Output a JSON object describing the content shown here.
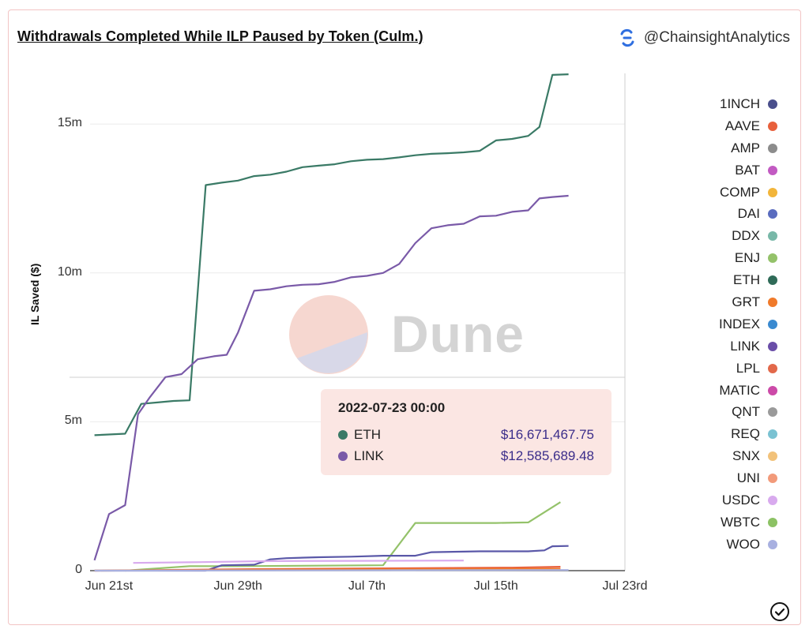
{
  "title": "Withdrawals Completed While ILP Paused by Token (Culm.)",
  "handle": "@ChainsightAnalytics",
  "watermark": "Dune",
  "tooltip": {
    "date": "2022-07-23 00:00",
    "rows": [
      {
        "name": "ETH",
        "value": "$16,671,467.75",
        "color": "#3a7a66"
      },
      {
        "name": "LINK",
        "value": "$12,585,689.48",
        "color": "#7a5aa8"
      }
    ]
  },
  "legend": [
    {
      "name": "1INCH",
      "color": "#4a4f8c"
    },
    {
      "name": "AAVE",
      "color": "#e8603c"
    },
    {
      "name": "AMP",
      "color": "#8c8c8c"
    },
    {
      "name": "BAT",
      "color": "#c25ac2"
    },
    {
      "name": "COMP",
      "color": "#f2b53a"
    },
    {
      "name": "DAI",
      "color": "#5a6cbf"
    },
    {
      "name": "DDX",
      "color": "#78b8a8"
    },
    {
      "name": "ENJ",
      "color": "#94c26a"
    },
    {
      "name": "ETH",
      "color": "#2f6b58"
    },
    {
      "name": "GRT",
      "color": "#f07a2a"
    },
    {
      "name": "INDEX",
      "color": "#3a8ad0"
    },
    {
      "name": "LINK",
      "color": "#6a4ea8"
    },
    {
      "name": "LPL",
      "color": "#e2684a"
    },
    {
      "name": "MATIC",
      "color": "#cc4aa8"
    },
    {
      "name": "QNT",
      "color": "#9a9a9a"
    },
    {
      "name": "REQ",
      "color": "#7ac2d2"
    },
    {
      "name": "SNX",
      "color": "#f2c27a"
    },
    {
      "name": "UNI",
      "color": "#f29a7a"
    },
    {
      "name": "USDC",
      "color": "#d8aaee"
    },
    {
      "name": "WBTC",
      "color": "#8cc264"
    },
    {
      "name": "WOO",
      "color": "#a8b0e0"
    }
  ],
  "chart_data": {
    "type": "line",
    "ylabel": "IL Saved ($)",
    "ylim": [
      0,
      16700000
    ],
    "y_ticks": [
      {
        "value": 0,
        "label": "0"
      },
      {
        "value": 5000000,
        "label": "5m"
      },
      {
        "value": 10000000,
        "label": "10m"
      },
      {
        "value": 15000000,
        "label": "15m"
      }
    ],
    "x_ticks": [
      "Jun 21st",
      "Jun 29th",
      "Jul 7th",
      "Jul 15th",
      "Jul 23rd"
    ],
    "x_range_days": [
      0,
      32
    ],
    "hover_day": 30.2,
    "series": [
      {
        "name": "ETH",
        "color": "#3a7a66",
        "points": [
          [
            -0.9,
            4550000.0
          ],
          [
            1,
            4600000.0
          ],
          [
            2,
            5600000.0
          ],
          [
            3,
            5650000.0
          ],
          [
            4,
            5700000.0
          ],
          [
            5,
            5720000.0
          ],
          [
            6,
            12950000.0
          ],
          [
            7,
            13030000.0
          ],
          [
            8,
            13100000.0
          ],
          [
            9,
            13250000.0
          ],
          [
            10,
            13300000.0
          ],
          [
            11,
            13400000.0
          ],
          [
            12,
            13550000.0
          ],
          [
            13,
            13600000.0
          ],
          [
            14,
            13650000.0
          ],
          [
            15,
            13750000.0
          ],
          [
            16,
            13800000.0
          ],
          [
            17,
            13820000.0
          ],
          [
            18,
            13880000.0
          ],
          [
            19,
            13950000.0
          ],
          [
            20,
            14000000.0
          ],
          [
            21,
            14020000.0
          ],
          [
            22,
            14050000.0
          ],
          [
            23,
            14100000.0
          ],
          [
            24,
            14450000.0
          ],
          [
            25,
            14500000.0
          ],
          [
            26,
            14600000.0
          ],
          [
            26.7,
            14900000.0
          ],
          [
            27.5,
            16650000.0
          ],
          [
            28.5,
            16670000.0
          ]
        ]
      },
      {
        "name": "LINK",
        "color": "#7a5aa8",
        "points": [
          [
            -0.9,
            350000.0
          ],
          [
            0,
            1900000.0
          ],
          [
            1,
            2200000.0
          ],
          [
            1.8,
            5250000.0
          ],
          [
            2.5,
            5800000.0
          ],
          [
            3.5,
            6500000.0
          ],
          [
            4.5,
            6600000.0
          ],
          [
            5.5,
            7100000.0
          ],
          [
            6.5,
            7200000.0
          ],
          [
            7.3,
            7250000.0
          ],
          [
            8,
            8000000.0
          ],
          [
            9,
            9400000.0
          ],
          [
            10,
            9450000.0
          ],
          [
            11,
            9550000.0
          ],
          [
            12,
            9600000.0
          ],
          [
            13,
            9620000.0
          ],
          [
            14,
            9700000.0
          ],
          [
            15,
            9850000.0
          ],
          [
            16,
            9900000.0
          ],
          [
            17,
            10000000.0
          ],
          [
            18,
            10300000.0
          ],
          [
            19,
            11000000.0
          ],
          [
            20,
            11500000.0
          ],
          [
            21,
            11600000.0
          ],
          [
            22,
            11650000.0
          ],
          [
            23,
            11900000.0
          ],
          [
            24,
            11920000.0
          ],
          [
            25,
            12050000.0
          ],
          [
            26,
            12100000.0
          ],
          [
            26.7,
            12500000.0
          ],
          [
            27.5,
            12550000.0
          ],
          [
            28.5,
            12590000.0
          ]
        ]
      },
      {
        "name": "WBTC",
        "color": "#94c26a",
        "points": [
          [
            1,
            0
          ],
          [
            5,
            150000.0
          ],
          [
            8,
            150000.0
          ],
          [
            17,
            180000.0
          ],
          [
            19,
            1600000.0
          ],
          [
            24,
            1600000.0
          ],
          [
            26,
            1620000.0
          ],
          [
            28,
            2300000.0
          ]
        ]
      },
      {
        "name": "DAI",
        "color": "#5a58a8",
        "points": [
          [
            -0.9,
            0
          ],
          [
            6,
            0
          ],
          [
            7,
            180000.0
          ],
          [
            9,
            200000.0
          ],
          [
            10,
            380000.0
          ],
          [
            11,
            420000.0
          ],
          [
            13,
            450000.0
          ],
          [
            15,
            470000.0
          ],
          [
            17,
            500000.0
          ],
          [
            19,
            500000.0
          ],
          [
            20,
            620000.0
          ],
          [
            23,
            650000.0
          ],
          [
            25,
            650000.0
          ],
          [
            26,
            650000.0
          ],
          [
            27,
            680000.0
          ],
          [
            27.5,
            820000.0
          ],
          [
            28.5,
            830000.0
          ]
        ]
      },
      {
        "name": "USDC",
        "color": "#d8aaee",
        "points": [
          [
            1.5,
            260000.0
          ],
          [
            5,
            280000.0
          ],
          [
            10,
            320000.0
          ],
          [
            15,
            330000.0
          ],
          [
            22,
            340000.0
          ]
        ]
      },
      {
        "name": "AAVE",
        "color": "#e8603c",
        "points": [
          [
            -0.9,
            0
          ],
          [
            9,
            50000.0
          ],
          [
            15,
            70000.0
          ],
          [
            25,
            100000.0
          ],
          [
            28,
            130000.0
          ]
        ]
      },
      {
        "name": "GRT",
        "color": "#f07a2a",
        "points": [
          [
            -0.9,
            0
          ],
          [
            10,
            30000.0
          ],
          [
            20,
            50000.0
          ],
          [
            28,
            60000.0
          ]
        ]
      },
      {
        "name": "WOO",
        "color": "#a8b0e0",
        "points": [
          [
            -0.9,
            0
          ],
          [
            10,
            10000.0
          ],
          [
            28.5,
            20000.0
          ]
        ]
      }
    ]
  }
}
